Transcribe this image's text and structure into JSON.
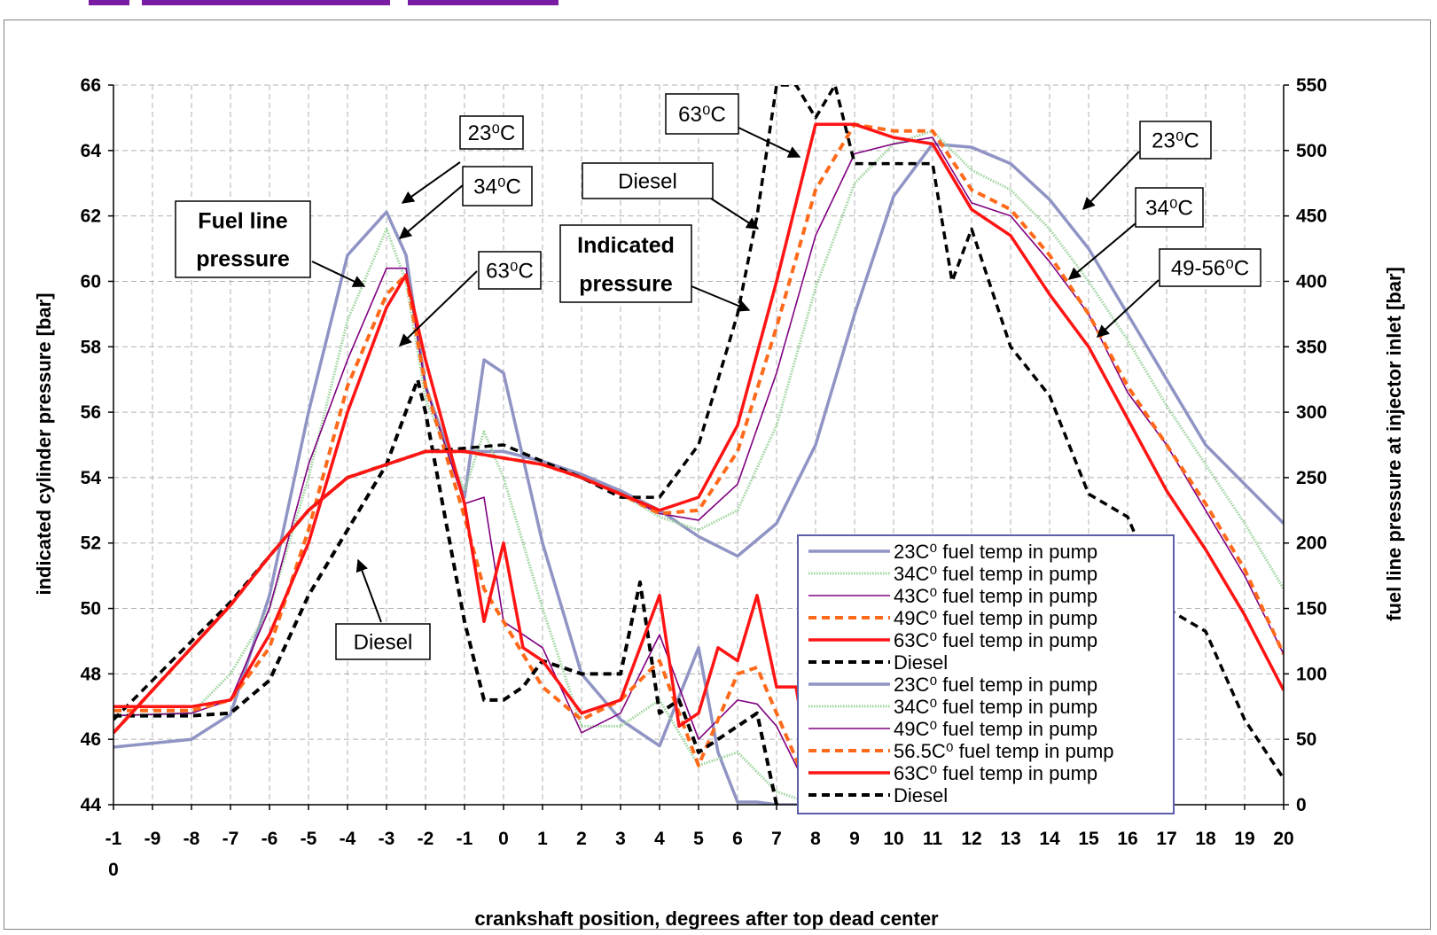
{
  "chart_data": {
    "type": "line",
    "xlabel": "crankshaft position, degrees after top dead center",
    "ylabel_left": "indicated cylinder pressure [bar]",
    "ylabel_right": "fuel line pressure at injector inlet [bar]",
    "x_ticks": [
      "-1\n0",
      "-9",
      "-8",
      "-7",
      "-6",
      "-5",
      "-4",
      "-3",
      "-2",
      "-1",
      "0",
      "1",
      "2",
      "3",
      "4",
      "5",
      "6",
      "7",
      "8",
      "9",
      "10",
      "11",
      "12",
      "13",
      "14",
      "15",
      "16",
      "17",
      "18",
      "19",
      "20"
    ],
    "xlim": [
      -10,
      20
    ],
    "ylim_left": [
      44,
      66
    ],
    "ylim_right": [
      0,
      550
    ],
    "y_ticks_left": [
      44,
      46,
      48,
      50,
      52,
      54,
      56,
      58,
      60,
      62,
      64,
      66
    ],
    "y_ticks_right": [
      0,
      50,
      100,
      150,
      200,
      250,
      300,
      350,
      400,
      450,
      500,
      550
    ],
    "grid": true,
    "legend_position": "bottom-right",
    "legend": [
      {
        "label": "23C⁰ fuel temp in pump",
        "color": "#8f94c4",
        "style": "solid"
      },
      {
        "label": "34C⁰ fuel temp in pump",
        "color": "#9ed49e",
        "style": "dotted-band"
      },
      {
        "label": "43C⁰ fuel temp in pump",
        "color": "#800080",
        "style": "solid"
      },
      {
        "label": "49C⁰ fuel temp in pump",
        "color": "#ff6a1a",
        "style": "dashed"
      },
      {
        "label": "63C⁰ fuel temp in pump",
        "color": "#ff1414",
        "style": "solid"
      },
      {
        "label": "Diesel",
        "color": "#000000",
        "style": "dashed"
      },
      {
        "label": "23C⁰ fuel temp in pump",
        "color": "#8f94c4",
        "style": "solid"
      },
      {
        "label": "34C⁰ fuel temp in pump",
        "color": "#9ed49e",
        "style": "dotted-band"
      },
      {
        "label": "49C⁰ fuel temp in pump",
        "color": "#800080",
        "style": "solid"
      },
      {
        "label": "56.5C⁰ fuel temp in pump",
        "color": "#ff6a1a",
        "style": "dashed"
      },
      {
        "label": "63C⁰ fuel temp in pump",
        "color": "#ff1414",
        "style": "solid"
      },
      {
        "label": "Diesel",
        "color": "#000000",
        "style": "dashed"
      }
    ],
    "annotations": [
      {
        "text": "23⁰C"
      },
      {
        "text": "34⁰C"
      },
      {
        "text": "63⁰C"
      },
      {
        "text": "Fuel line\npressure"
      },
      {
        "text": "Diesel"
      },
      {
        "text": "63⁰C"
      },
      {
        "text": "Diesel"
      },
      {
        "text": "Indicated\npressure"
      },
      {
        "text": "23⁰C"
      },
      {
        "text": "34⁰C"
      },
      {
        "text": "49-56⁰C"
      }
    ],
    "series": [
      {
        "key": "cyl_23",
        "axis": "left",
        "color": "#8f94c4",
        "style": "solid",
        "x": [
          -10,
          -7,
          -6,
          -5,
          -4,
          -3,
          -2,
          -1,
          0,
          1,
          2,
          3,
          4,
          5,
          6,
          7,
          8,
          9,
          10,
          11,
          12,
          13,
          14,
          15,
          16,
          17,
          18,
          19,
          20
        ],
        "y": [
          46.2,
          50.1,
          51.6,
          53.0,
          54.0,
          54.4,
          54.8,
          54.8,
          54.8,
          54.5,
          54.1,
          53.6,
          53.0,
          52.2,
          51.6,
          52.6,
          55.0,
          59.0,
          62.6,
          64.2,
          64.1,
          63.6,
          62.5,
          61.0,
          59.0,
          57.0,
          55.0,
          53.8,
          52.6
        ]
      },
      {
        "key": "cyl_34",
        "axis": "left",
        "color": "#9ed49e",
        "style": "dotted-band",
        "x": [
          -10,
          -7,
          -6,
          -5,
          -4,
          -3,
          -2,
          -1,
          0,
          1,
          2,
          3,
          4,
          5,
          6,
          7,
          8,
          9,
          10,
          11,
          12,
          13,
          14,
          15,
          16,
          17,
          18,
          19,
          20
        ],
        "y": [
          46.2,
          50.1,
          51.6,
          53.0,
          54.0,
          54.4,
          54.8,
          54.8,
          54.6,
          54.4,
          54.0,
          53.5,
          52.8,
          52.4,
          53.0,
          55.6,
          59.8,
          63.0,
          64.2,
          64.6,
          63.4,
          62.8,
          61.6,
          60.0,
          58.2,
          56.2,
          54.4,
          52.6,
          50.6
        ]
      },
      {
        "key": "cyl_43",
        "axis": "left",
        "color": "#800080",
        "style": "solid",
        "x": [
          -10,
          -7,
          -6,
          -5,
          -4,
          -3,
          -2,
          -1,
          0,
          1,
          2,
          3,
          4,
          5,
          6,
          7,
          8,
          9,
          10,
          11,
          12,
          13,
          14,
          15,
          16,
          17,
          18,
          19,
          20
        ],
        "y": [
          46.2,
          50.1,
          51.6,
          53.0,
          54.0,
          54.4,
          54.8,
          54.8,
          54.6,
          54.4,
          54.0,
          53.5,
          52.9,
          52.7,
          53.8,
          57.2,
          61.4,
          63.9,
          64.2,
          64.4,
          62.4,
          62.0,
          60.6,
          59.0,
          56.6,
          55.0,
          53.0,
          51.0,
          48.6
        ]
      },
      {
        "key": "cyl_49",
        "axis": "left",
        "color": "#ff6a1a",
        "style": "dashed",
        "x": [
          -10,
          -7,
          -6,
          -5,
          -4,
          -3,
          -2,
          -1,
          0,
          1,
          2,
          3,
          4,
          5,
          6,
          7,
          8,
          9,
          10,
          11,
          12,
          13,
          14,
          15,
          16,
          17,
          18,
          19,
          20
        ],
        "y": [
          46.2,
          50.1,
          51.6,
          53.0,
          54.0,
          54.4,
          54.8,
          54.8,
          54.6,
          54.4,
          54.0,
          53.5,
          52.9,
          53.0,
          54.8,
          58.6,
          62.8,
          64.8,
          64.6,
          64.6,
          62.8,
          62.2,
          60.8,
          59.0,
          56.8,
          55.0,
          53.2,
          51.2,
          48.6
        ]
      },
      {
        "key": "cyl_63",
        "axis": "left",
        "color": "#ff1414",
        "style": "solid",
        "x": [
          -10,
          -7,
          -6,
          -5,
          -4,
          -3,
          -2,
          -1,
          0,
          1,
          2,
          3,
          4,
          5,
          6,
          7,
          8,
          9,
          10,
          11,
          12,
          13,
          14,
          15,
          16,
          17,
          18,
          19,
          20
        ],
        "y": [
          46.2,
          50.1,
          51.6,
          53.0,
          54.0,
          54.4,
          54.8,
          54.8,
          54.6,
          54.4,
          54.0,
          53.5,
          53.0,
          53.4,
          55.6,
          60.0,
          64.8,
          64.8,
          64.4,
          64.2,
          62.2,
          61.4,
          59.6,
          58.0,
          55.8,
          53.6,
          51.8,
          49.8,
          47.5
        ]
      },
      {
        "key": "cyl_diesel",
        "axis": "left",
        "color": "#000000",
        "style": "dashed",
        "x": [
          -10,
          -7,
          -6,
          -5,
          -4,
          -3,
          -2,
          -1,
          0,
          1,
          2,
          3,
          4,
          5,
          6,
          6.5,
          7,
          7.5,
          8,
          8.5,
          9,
          10,
          11,
          11.5,
          12,
          13,
          14,
          15,
          16,
          17,
          18,
          19,
          20
        ],
        "y": [
          46.6,
          50.2,
          51.6,
          53.0,
          54.0,
          54.4,
          54.8,
          54.9,
          55.0,
          54.5,
          54.0,
          53.4,
          53.4,
          55.0,
          59.0,
          62.0,
          66.0,
          66.0,
          65.0,
          66.0,
          63.6,
          63.6,
          63.6,
          60.0,
          61.6,
          58.0,
          56.5,
          53.5,
          52.8,
          50.0,
          49.3,
          46.6,
          44.8
        ]
      },
      {
        "key": "fuel_23",
        "axis": "right",
        "color": "#8f94c4",
        "style": "solid",
        "x": [
          -10,
          -8,
          -7,
          -6,
          -5,
          -4,
          -3,
          -2.5,
          -2,
          -1,
          -0.5,
          0,
          1,
          2,
          3,
          4,
          5,
          5.5,
          6,
          6.5,
          7,
          8,
          9,
          10
        ],
        "y": [
          44,
          50,
          69,
          160,
          300,
          420,
          453,
          420,
          320,
          235,
          340,
          330,
          200,
          100,
          65,
          45,
          120,
          40,
          2,
          2,
          0,
          0,
          0,
          0
        ]
      },
      {
        "key": "fuel_34",
        "axis": "right",
        "color": "#9ed49e",
        "style": "dotted-band",
        "x": [
          -10,
          -8,
          -7,
          -6,
          -5,
          -4,
          -3,
          -2.5,
          -2,
          -1,
          -0.5,
          0,
          1,
          2,
          3,
          4,
          5,
          6,
          7,
          8,
          9,
          10
        ],
        "y": [
          68,
          70,
          100,
          150,
          250,
          370,
          440,
          400,
          310,
          240,
          285,
          250,
          150,
          60,
          60,
          80,
          30,
          40,
          10,
          0,
          0,
          0
        ]
      },
      {
        "key": "fuel_49",
        "axis": "right",
        "color": "#800080",
        "style": "solid",
        "x": [
          -10,
          -8,
          -7,
          -6,
          -5,
          -4,
          -3,
          -2.5,
          -2,
          -1,
          -0.5,
          0,
          1,
          2,
          3,
          4,
          5,
          6,
          6.5,
          7,
          8,
          9,
          10
        ],
        "y": [
          68,
          70,
          80,
          150,
          260,
          340,
          410,
          410,
          320,
          230,
          235,
          140,
          120,
          55,
          70,
          130,
          50,
          80,
          77,
          60,
          0,
          0,
          0
        ]
      },
      {
        "key": "fuel_56",
        "axis": "right",
        "color": "#ff6a1a",
        "style": "dashed",
        "x": [
          -10,
          -8,
          -7,
          -6,
          -5,
          -4,
          -3,
          -2.5,
          -2,
          -1,
          -0.5,
          0,
          1,
          2,
          3,
          4,
          5,
          6,
          6.5,
          7,
          8,
          9,
          10
        ],
        "y": [
          72,
          72,
          80,
          120,
          210,
          320,
          390,
          405,
          320,
          220,
          165,
          140,
          90,
          65,
          80,
          110,
          30,
          100,
          105,
          70,
          0,
          0,
          0
        ]
      },
      {
        "key": "fuel_63",
        "axis": "right",
        "color": "#ff1414",
        "style": "solid",
        "x": [
          -10,
          -8,
          -7,
          -6,
          -5,
          -4,
          -3,
          -2.5,
          -2,
          -1,
          -0.5,
          0,
          0.5,
          1,
          2,
          3,
          4,
          4.5,
          5,
          5.5,
          6,
          6.5,
          7,
          7.5,
          8,
          9,
          10
        ],
        "y": [
          75,
          75,
          80,
          130,
          200,
          300,
          380,
          405,
          340,
          230,
          140,
          200,
          120,
          110,
          70,
          80,
          160,
          60,
          70,
          120,
          110,
          160,
          90,
          90,
          0,
          0,
          0
        ]
      },
      {
        "key": "fuel_diesel",
        "axis": "right",
        "color": "#000000",
        "style": "dashed",
        "x": [
          -10,
          -8,
          -7,
          -6,
          -5,
          -4,
          -3,
          -2.2,
          -2,
          -1,
          -0.5,
          0,
          0.5,
          1,
          2,
          3,
          3.5,
          4,
          4.5,
          5,
          6,
          6.5,
          7
        ],
        "y": [
          68,
          68,
          70,
          95,
          160,
          210,
          260,
          325,
          300,
          140,
          80,
          80,
          90,
          110,
          100,
          100,
          170,
          70,
          80,
          40,
          60,
          70,
          0
        ]
      }
    ]
  }
}
